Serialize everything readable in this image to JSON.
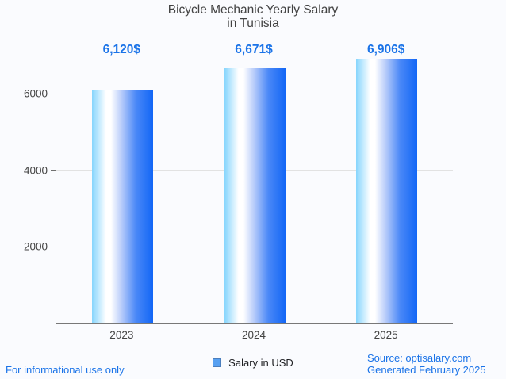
{
  "title": {
    "line1": "Bicycle Mechanic Yearly Salary",
    "line2": "in Tunisia"
  },
  "chart_data": {
    "type": "bar",
    "title": "Bicycle Mechanic Yearly Salary in Tunisia",
    "categories": [
      "2023",
      "2024",
      "2025"
    ],
    "values": [
      6120,
      6671,
      6906
    ],
    "value_labels": [
      "6,120$",
      "6,671$",
      "6,906$"
    ],
    "series_name": "Salary in USD",
    "xlabel": "",
    "ylabel": "",
    "yticks": [
      2000,
      4000,
      6000
    ],
    "ylim": [
      0,
      7000
    ],
    "grid": true,
    "legend_position": "bottom"
  },
  "legend": {
    "label": "Salary in USD"
  },
  "footer": {
    "left": "For informational use only",
    "source": "Source: optisalary.com",
    "generated": "Generated February 2025"
  },
  "colors": {
    "value_label": "#1a73e8",
    "footer_text": "#1a73e8",
    "title_text": "#424242",
    "axis": "#6f6f6f",
    "gridline": "#e2e2e2",
    "bar_gradient": [
      "#86d5fd",
      "#ffffff",
      "#1266f6"
    ],
    "legend_swatch": "#57a0f1",
    "background": "#fafbfe"
  }
}
